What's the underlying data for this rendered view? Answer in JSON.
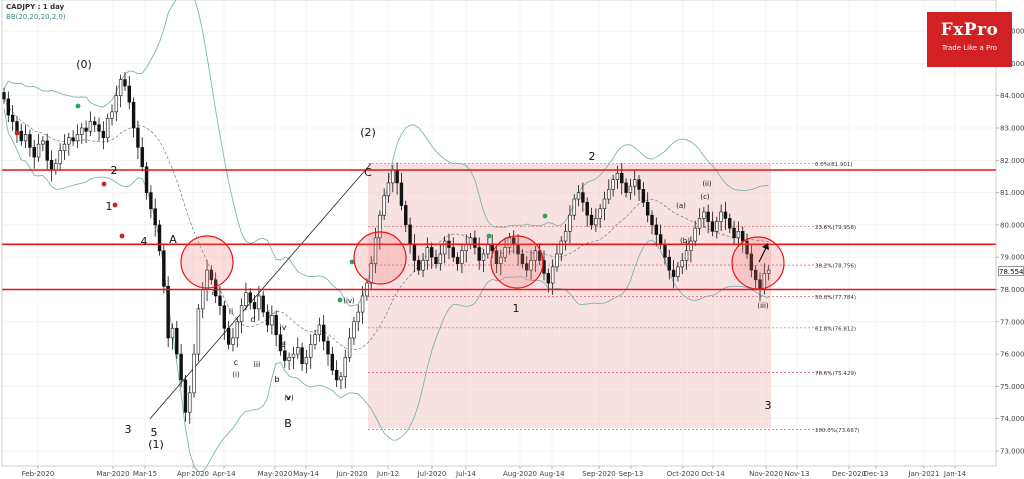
{
  "header": {
    "symbol": "CADJPY : 1 day",
    "indicator": "BB(20,20,20,2,0)"
  },
  "logo": {
    "brand": "FxPro",
    "tagline": "Trade Like a Pro"
  },
  "colors": {
    "bull": "#26a65b",
    "bear": "#cc2222",
    "candle": "#111111",
    "bollinger": "#7fb3b3",
    "level_line": "#ee1111",
    "zone_fill": "#f3c9c9",
    "circle": "#ee1111",
    "grid": "#ececec"
  },
  "chart_data": {
    "type": "candlestick",
    "title": "CADJPY : 1 day",
    "ylim": [
      72.5,
      87.0
    ],
    "y_ticks": [
      "86.000",
      "85.000",
      "84.000",
      "83.000",
      "82.000",
      "81.000",
      "80.000",
      "79.000",
      "78.000",
      "77.000",
      "76.000",
      "75.000",
      "74.000",
      "73.000"
    ],
    "x_ticks": [
      "Feb-2020",
      "Mar-2020",
      "Mar-15",
      "Apr-2020",
      "Apr-14",
      "May-2020",
      "May-14",
      "Jun-2020",
      "Jun-12",
      "Jul-2020",
      "Jul-14",
      "Aug-2020",
      "Aug-14",
      "Sep-2020",
      "Sep-13",
      "Oct-2020",
      "Oct-14",
      "Nov-2020",
      "Nov-13",
      "Dec-2020",
      "Dec-13",
      "Jan-2021",
      "Jan-14"
    ],
    "current_price": "78.554",
    "horizontal_levels": [
      81.7,
      79.4,
      78.0
    ],
    "zone": {
      "from": "Jun-2020",
      "to": "Nov-2020",
      "low": 73.7,
      "high": 81.9
    },
    "fibonacci": [
      {
        "label": "0.0%(81.901)",
        "value": 81.901
      },
      {
        "label": "23.6%(79.958)",
        "value": 79.958
      },
      {
        "label": "38.2%(78.756)",
        "value": 78.756
      },
      {
        "label": "50.0%(77.784)",
        "value": 77.784
      },
      {
        "label": "61.8%(76.812)",
        "value": 76.812
      },
      {
        "label": "78.6%(75.429)",
        "value": 75.429
      },
      {
        "label": "100.0%(73.667)",
        "value": 73.667
      }
    ],
    "closes": [
      83.9,
      83.4,
      83.2,
      82.9,
      82.6,
      82.8,
      82.4,
      82.1,
      82.5,
      82.6,
      82.0,
      81.7,
      81.9,
      82.3,
      82.5,
      82.7,
      82.6,
      82.8,
      83.0,
      82.9,
      83.2,
      83.1,
      82.9,
      82.7,
      83.3,
      83.5,
      84.0,
      84.5,
      84.3,
      83.8,
      83.0,
      82.4,
      81.8,
      81.0,
      80.5,
      80.0,
      79.2,
      78.1,
      76.5,
      76.8,
      76.0,
      75.2,
      74.2,
      74.8,
      76.0,
      77.4,
      78.0,
      78.6,
      78.3,
      77.8,
      77.5,
      76.8,
      76.3,
      76.5,
      77.0,
      77.5,
      77.9,
      77.6,
      77.4,
      77.8,
      77.3,
      76.9,
      77.2,
      76.6,
      76.1,
      75.8,
      75.9,
      76.0,
      76.2,
      75.7,
      75.9,
      76.3,
      76.6,
      76.9,
      76.4,
      76.0,
      75.5,
      75.2,
      75.3,
      75.9,
      76.5,
      77.0,
      77.3,
      77.8,
      78.2,
      78.8,
      79.6,
      80.3,
      80.9,
      81.3,
      81.7,
      81.3,
      80.6,
      80.0,
      79.4,
      78.9,
      78.6,
      78.9,
      79.3,
      79.0,
      78.8,
      79.1,
      79.5,
      79.3,
      79.0,
      78.8,
      79.2,
      79.4,
      79.6,
      79.3,
      78.9,
      79.1,
      79.4,
      79.2,
      78.8,
      79.0,
      79.3,
      79.6,
      79.4,
      79.1,
      78.8,
      78.6,
      78.9,
      79.2,
      78.9,
      78.5,
      78.2,
      78.7,
      79.1,
      79.5,
      79.8,
      80.3,
      80.8,
      81.0,
      80.7,
      80.3,
      80.0,
      80.2,
      80.5,
      80.8,
      81.1,
      81.4,
      81.6,
      81.3,
      81.0,
      81.2,
      81.4,
      81.1,
      80.7,
      80.3,
      80.0,
      79.7,
      79.4,
      79.0,
      78.6,
      78.4,
      78.7,
      78.9,
      79.2,
      79.5,
      79.9,
      80.2,
      80.4,
      80.1,
      79.8,
      80.1,
      80.4,
      80.2,
      79.9,
      79.6,
      79.8,
      79.5,
      79.1,
      78.6,
      78.3,
      78.0,
      78.5,
      78.6
    ],
    "annotations": [
      "(0)",
      "2",
      "1",
      "4",
      "3",
      "5",
      "(1)",
      "A",
      "B",
      "C",
      "(2)",
      "a",
      "b",
      "c",
      "d",
      "e",
      "i",
      "ii",
      "iii",
      "iv",
      "v",
      "(a)",
      "(b)",
      "(c)",
      "(i)",
      "(ii)",
      "(iii)",
      "(iv)",
      "(v)",
      "1",
      "2",
      "3"
    ]
  }
}
